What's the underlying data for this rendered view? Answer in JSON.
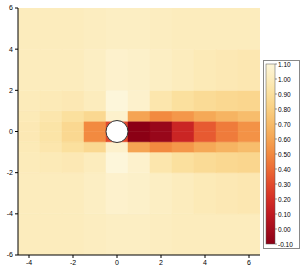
{
  "chart_data": {
    "type": "heatmap",
    "xlim": [
      -4.5,
      6.5
    ],
    "xticks": [
      -4,
      -2,
      0,
      2,
      4,
      6
    ],
    "ylim": [
      -6,
      6
    ],
    "yticks": [
      -6,
      -4,
      -2,
      0,
      2,
      4,
      6
    ],
    "x_edges": [
      -4.5,
      -3.5,
      -2.5,
      -1.5,
      -0.5,
      0.5,
      1.5,
      2.5,
      3.5,
      4.5,
      5.5,
      6.5
    ],
    "y_edges": [
      -6,
      -4,
      -2,
      -1,
      -0.5,
      0,
      0.5,
      1,
      2,
      4,
      6
    ],
    "cells": [
      [
        1.0,
        1.0,
        1.0,
        1.01,
        1.02,
        1.02,
        1.01,
        1.0,
        1.0,
        1.0,
        1.0
      ],
      [
        1.0,
        1.0,
        1.0,
        1.02,
        1.05,
        1.04,
        1.02,
        1.0,
        0.98,
        0.97,
        0.96
      ],
      [
        0.99,
        0.98,
        0.97,
        1.0,
        1.1,
        1.05,
        0.95,
        0.9,
        0.87,
        0.85,
        0.84
      ],
      [
        0.98,
        0.95,
        0.9,
        0.85,
        1.05,
        0.6,
        0.5,
        0.55,
        0.62,
        0.67,
        0.71
      ],
      [
        0.97,
        0.93,
        0.85,
        0.5,
        0.3,
        -0.1,
        -0.05,
        0.15,
        0.35,
        0.45,
        0.53
      ],
      [
        0.97,
        0.93,
        0.85,
        0.5,
        0.3,
        -0.1,
        -0.05,
        0.15,
        0.35,
        0.45,
        0.53
      ],
      [
        0.98,
        0.95,
        0.9,
        0.85,
        1.05,
        0.6,
        0.5,
        0.55,
        0.62,
        0.67,
        0.71
      ],
      [
        0.99,
        0.98,
        0.97,
        1.0,
        1.1,
        1.05,
        0.95,
        0.9,
        0.87,
        0.85,
        0.84
      ],
      [
        1.0,
        1.0,
        1.0,
        1.02,
        1.05,
        1.04,
        1.02,
        1.0,
        0.98,
        0.97,
        0.96
      ],
      [
        1.0,
        1.0,
        1.0,
        1.01,
        1.02,
        1.02,
        1.01,
        1.0,
        1.0,
        1.0,
        1.0
      ]
    ],
    "cylinder": {
      "x": 0,
      "y": 0,
      "radius": 0.5
    },
    "colorbar": {
      "range": [
        -0.1,
        1.1
      ],
      "ticks": [
        {
          "value": -0.1,
          "label": "-0.10"
        },
        {
          "value": 0.0,
          "label": "0.00"
        },
        {
          "value": 0.1,
          "label": "0.10"
        },
        {
          "value": 0.2,
          "label": "0.20"
        },
        {
          "value": 0.3,
          "label": "0.30"
        },
        {
          "value": 0.4,
          "label": "0.40"
        },
        {
          "value": 0.5,
          "label": "0.50"
        },
        {
          "value": 0.6,
          "label": "0.60"
        },
        {
          "value": 0.7,
          "label": "0.70"
        },
        {
          "value": 0.8,
          "label": "0.80"
        },
        {
          "value": 0.9,
          "label": "0.90"
        },
        {
          "value": 1.0,
          "label": "1.00"
        },
        {
          "value": 1.1,
          "label": "1.10"
        }
      ],
      "colors": [
        "#8b0015",
        "#a50d1e",
        "#c01a22",
        "#d42f26",
        "#e24a2c",
        "#ec6b35",
        "#f28a40",
        "#f5a453",
        "#f7bb69",
        "#f9cf83",
        "#fbe09e",
        "#fcecbd",
        "#fdf6da"
      ]
    }
  }
}
